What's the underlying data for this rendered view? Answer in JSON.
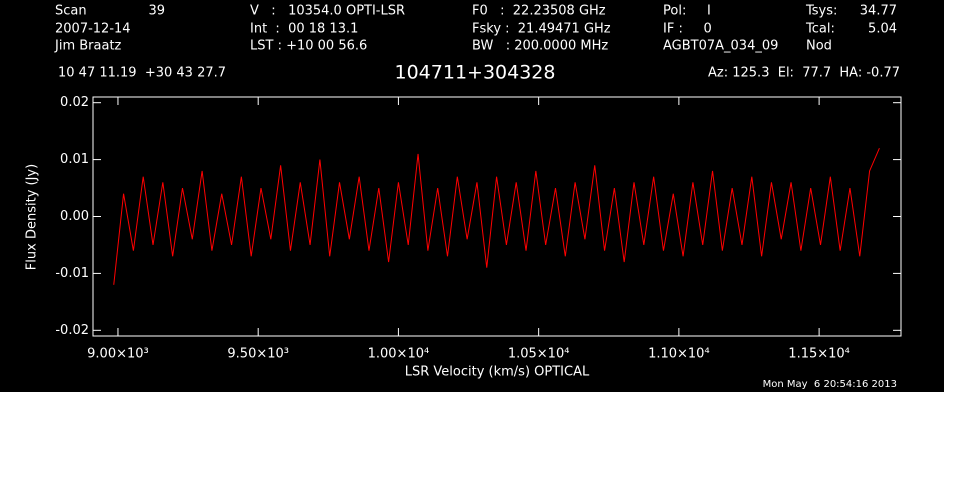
{
  "chart_data": {
    "type": "line",
    "title": "104711+304328",
    "annotations": [
      "Scan",
      "39",
      "2007-12-14",
      "Jim Braatz",
      "V   :   10354.0 OPTI-LSR",
      "Int  :  00 18 13.1",
      "LST : +10 00 56.6",
      "F0   :  22.23508 GHz",
      "Fsky :  21.49471 GHz",
      "BW   : 200.0000 MHz",
      "Pol:     I",
      "IF :     0",
      "AGBT07A_034_09",
      "Tsys:",
      "34.77",
      "Tcal:",
      "5.04",
      "Nod",
      "10 47 11.19  +30 43 27.7",
      "Az: 125.3  El:  77.7  HA: -0.77",
      "Mon May  6 20:54:16 2013"
    ],
    "xlabel": "LSR Velocity (km/s) OPTICAL",
    "ylabel": "Flux Density (Jy)",
    "xlim": [
      8911,
      11792
    ],
    "ylim": [
      -0.021,
      0.021
    ],
    "xticks": [
      {
        "value": 9000,
        "label": "9.00×10³"
      },
      {
        "value": 9500,
        "label": "9.50×10³"
      },
      {
        "value": 10000,
        "label": "1.00×10⁴"
      },
      {
        "value": 10500,
        "label": "1.05×10⁴"
      },
      {
        "value": 11000,
        "label": "1.10×10⁴"
      },
      {
        "value": 11500,
        "label": "1.15×10⁴"
      }
    ],
    "yticks": [
      -0.02,
      -0.01,
      {
        "value": 0,
        "label": "0.00"
      },
      0.01,
      0.02
    ],
    "x": [
      8985,
      9020,
      9055,
      9090,
      9125,
      9160,
      9195,
      9230,
      9265,
      9300,
      9335,
      9370,
      9405,
      9440,
      9475,
      9510,
      9545,
      9580,
      9615,
      9650,
      9685,
      9720,
      9755,
      9790,
      9825,
      9860,
      9895,
      9930,
      9965,
      10000,
      10035,
      10070,
      10105,
      10140,
      10175,
      10210,
      10245,
      10280,
      10315,
      10350,
      10385,
      10420,
      10455,
      10490,
      10525,
      10560,
      10595,
      10630,
      10665,
      10700,
      10735,
      10770,
      10805,
      10840,
      10875,
      10910,
      10945,
      10980,
      11015,
      11050,
      11085,
      11120,
      11155,
      11190,
      11225,
      11260,
      11295,
      11330,
      11365,
      11400,
      11435,
      11470,
      11505,
      11540,
      11575,
      11610,
      11645,
      11680,
      11715
    ],
    "series": [
      {
        "color": "#ff0000",
        "values": [
          -0.012,
          0.004,
          -0.006,
          0.007,
          -0.005,
          0.006,
          -0.007,
          0.005,
          -0.004,
          0.008,
          -0.006,
          0.004,
          -0.005,
          0.007,
          -0.007,
          0.005,
          -0.004,
          0.009,
          -0.006,
          0.006,
          -0.005,
          0.01,
          -0.007,
          0.006,
          -0.004,
          0.007,
          -0.006,
          0.005,
          -0.008,
          0.006,
          -0.005,
          0.011,
          -0.006,
          0.005,
          -0.007,
          0.007,
          -0.004,
          0.006,
          -0.009,
          0.007,
          -0.005,
          0.006,
          -0.006,
          0.008,
          -0.005,
          0.005,
          -0.007,
          0.006,
          -0.004,
          0.009,
          -0.006,
          0.005,
          -0.008,
          0.006,
          -0.005,
          0.007,
          -0.006,
          0.004,
          -0.007,
          0.006,
          -0.005,
          0.008,
          -0.006,
          0.005,
          -0.005,
          0.007,
          -0.007,
          0.006,
          -0.004,
          0.006,
          -0.006,
          0.005,
          -0.005,
          0.007,
          -0.006,
          0.005,
          -0.007,
          0.008,
          0.012
        ]
      }
    ]
  }
}
